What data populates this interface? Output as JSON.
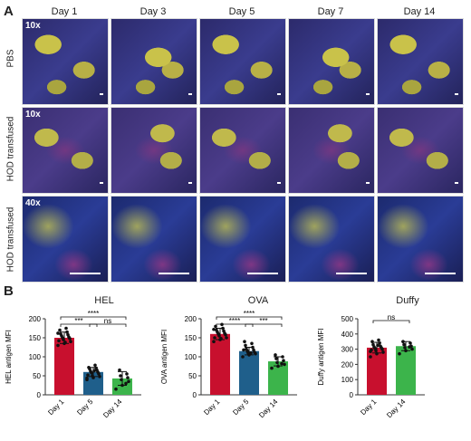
{
  "panel_a": {
    "letter": "A",
    "columns": [
      "Day 1",
      "Day 3",
      "Day 5",
      "Day 7",
      "Day 14"
    ],
    "rows": [
      {
        "label": "PBS",
        "magnification": "10x",
        "style": "pbs"
      },
      {
        "label": "HOD transfused",
        "magnification": "10x",
        "style": "hod10"
      },
      {
        "label": "HOD transfused",
        "magnification": "40x",
        "style": "hod40"
      }
    ]
  },
  "panel_b": {
    "letter": "B",
    "colors": {
      "day1": "#c8102e",
      "day5": "#1f5f8b",
      "day14": "#3cb44b"
    }
  },
  "chart_data": [
    {
      "type": "bar",
      "title": "HEL",
      "ylabel": "HEL antigen MFI",
      "ylim": [
        0,
        200
      ],
      "yticks": [
        0,
        50,
        100,
        150,
        200
      ],
      "categories": [
        "Day 1",
        "Day 5",
        "Day 14"
      ],
      "values": [
        150,
        60,
        43
      ],
      "errors": [
        15,
        12,
        18
      ],
      "points": [
        [
          130,
          135,
          140,
          145,
          148,
          150,
          152,
          155,
          158,
          160,
          165,
          170,
          175,
          142,
          138,
          162
        ],
        [
          40,
          45,
          48,
          50,
          55,
          58,
          60,
          62,
          65,
          68,
          70,
          72,
          78,
          52,
          63,
          44
        ],
        [
          15,
          25,
          35,
          40,
          45,
          50,
          55,
          65,
          30
        ]
      ],
      "significance": [
        {
          "from": 0,
          "to": 1,
          "label": "***"
        },
        {
          "from": 0,
          "to": 2,
          "label": "****"
        },
        {
          "from": 1,
          "to": 2,
          "label": "ns"
        }
      ]
    },
    {
      "type": "bar",
      "title": "OVA",
      "ylabel": "OVA antigen MFI",
      "ylim": [
        0,
        200
      ],
      "yticks": [
        0,
        50,
        100,
        150,
        200
      ],
      "categories": [
        "Day 1",
        "Day 5",
        "Day 14"
      ],
      "values": [
        160,
        115,
        88
      ],
      "errors": [
        15,
        10,
        12
      ],
      "points": [
        [
          140,
          145,
          150,
          155,
          158,
          160,
          162,
          165,
          168,
          170,
          175,
          180,
          185,
          150,
          148,
          172
        ],
        [
          100,
          105,
          108,
          110,
          112,
          115,
          118,
          120,
          125,
          130,
          135,
          140,
          110,
          118
        ],
        [
          70,
          75,
          80,
          85,
          90,
          95,
          100,
          105,
          82
        ]
      ],
      "significance": [
        {
          "from": 0,
          "to": 1,
          "label": "****"
        },
        {
          "from": 0,
          "to": 2,
          "label": "****"
        },
        {
          "from": 1,
          "to": 2,
          "label": "***"
        }
      ]
    },
    {
      "type": "bar",
      "title": "Duffy",
      "ylabel": "Duffy antigen MFI",
      "ylim": [
        0,
        500
      ],
      "yticks": [
        0,
        100,
        200,
        300,
        400,
        500
      ],
      "categories": [
        "Day 1",
        "Day 14"
      ],
      "values": [
        310,
        320
      ],
      "errors": [
        35,
        30
      ],
      "points": [
        [
          250,
          270,
          280,
          290,
          300,
          305,
          310,
          315,
          320,
          330,
          340,
          350,
          360,
          295,
          325,
          285
        ],
        [
          270,
          290,
          300,
          310,
          320,
          330,
          340,
          350,
          315
        ]
      ],
      "significance": [
        {
          "from": 0,
          "to": 1,
          "label": "ns"
        }
      ]
    }
  ]
}
